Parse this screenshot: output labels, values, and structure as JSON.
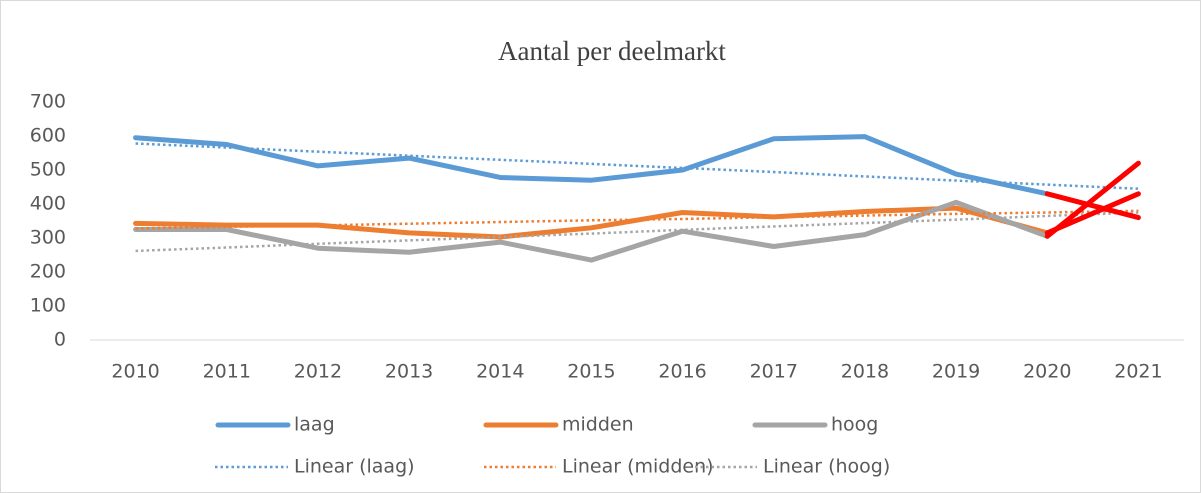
{
  "chart_data": {
    "type": "line",
    "title": "Aantal per deelmarkt",
    "categories": [
      "2010",
      "2011",
      "2012",
      "2013",
      "2014",
      "2015",
      "2016",
      "2017",
      "2018",
      "2019",
      "2020",
      "2021"
    ],
    "ylim": [
      0,
      700
    ],
    "yticks": [
      0,
      100,
      200,
      300,
      400,
      500,
      600,
      700
    ],
    "last_segment_color": "#ff0000",
    "series": [
      {
        "name": "laag",
        "color": "#5b9bd5",
        "style": "solid",
        "values": [
          595,
          575,
          512,
          535,
          478,
          470,
          500,
          592,
          598,
          488,
          430,
          360
        ]
      },
      {
        "name": "midden",
        "color": "#ed7d31",
        "style": "solid",
        "values": [
          343,
          338,
          338,
          315,
          303,
          330,
          375,
          362,
          378,
          388,
          315,
          430
        ]
      },
      {
        "name": "hoog",
        "color": "#a5a5a5",
        "style": "solid",
        "values": [
          325,
          325,
          270,
          258,
          288,
          235,
          320,
          275,
          310,
          405,
          305,
          520
        ]
      },
      {
        "name": "Linear (laag)",
        "color": "#5b9bd5",
        "style": "dotted",
        "values": [
          578,
          566,
          554,
          542,
          530,
          518,
          506,
          494,
          481,
          469,
          457,
          445
        ]
      },
      {
        "name": "Linear (midden)",
        "color": "#ed7d31",
        "style": "dotted",
        "values": [
          328,
          333,
          337,
          342,
          347,
          352,
          356,
          361,
          366,
          371,
          375,
          380
        ]
      },
      {
        "name": "Linear (hoog)",
        "color": "#a5a5a5",
        "style": "dotted",
        "values": [
          262,
          272,
          283,
          293,
          303,
          313,
          324,
          334,
          344,
          354,
          365,
          375
        ]
      }
    ]
  }
}
